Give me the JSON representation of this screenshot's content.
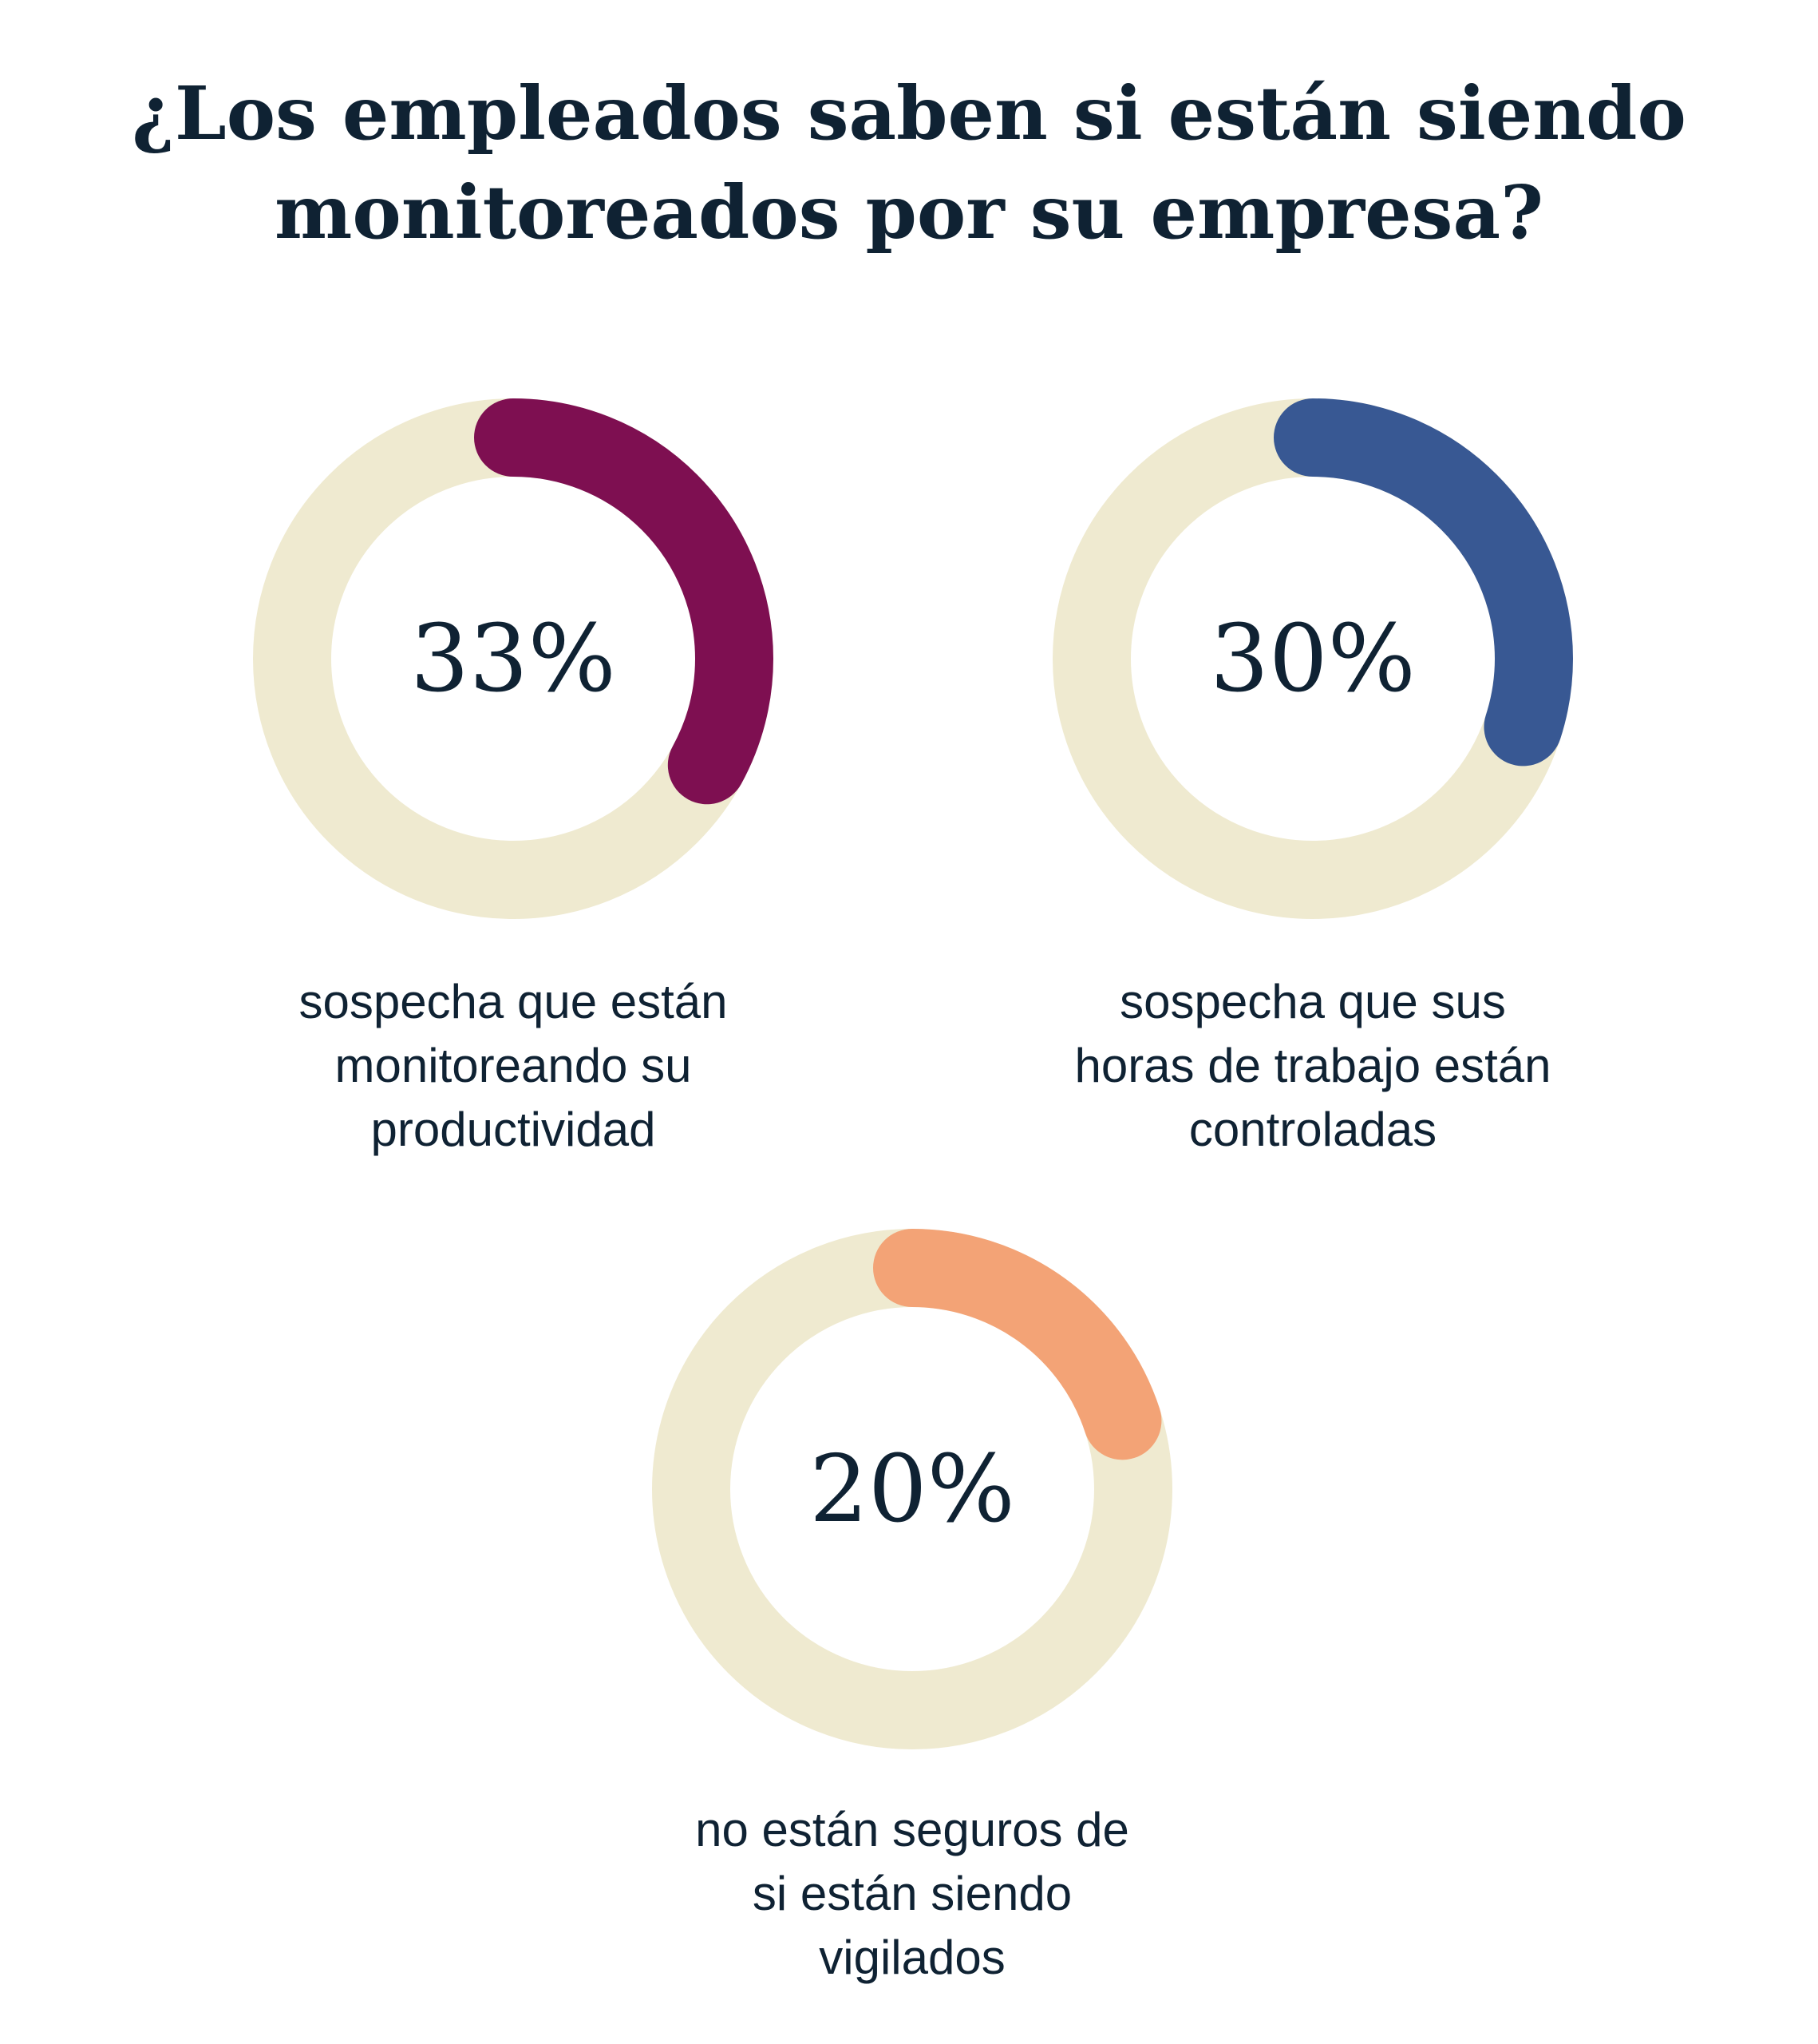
{
  "title": {
    "line1": "¿Los empleados saben si están siendo",
    "line2": "monitoreados por su empresa?"
  },
  "chart_data": {
    "type": "donut",
    "track_color": "#efead0",
    "items": [
      {
        "value": 33,
        "value_label": "33%",
        "color": "#7e0f51",
        "label_lines": [
          "sospecha que están",
          "monitoreando su",
          "productividad"
        ]
      },
      {
        "value": 30,
        "value_label": "30%",
        "color": "#385893",
        "label_lines": [
          "sospecha que sus",
          "horas de trabajo están",
          "controladas"
        ]
      },
      {
        "value": 20,
        "value_label": "20%",
        "color": "#f3a376",
        "label_lines": [
          "no están seguros de",
          "si están siendo",
          "vigilados"
        ]
      }
    ]
  }
}
